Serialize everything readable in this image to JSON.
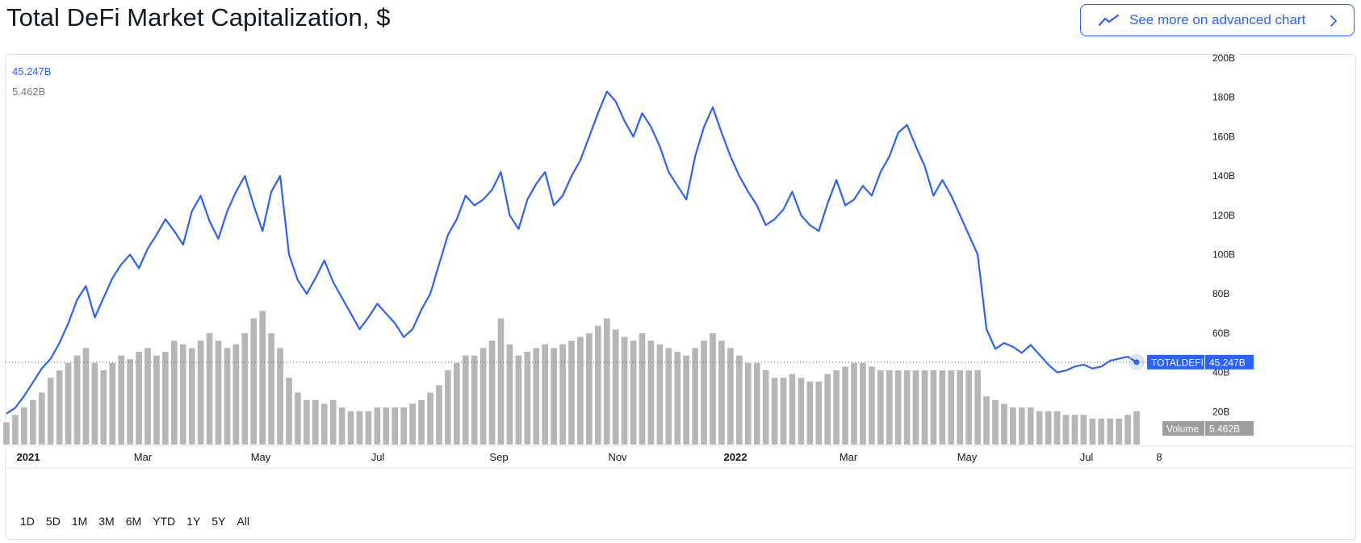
{
  "header": {
    "title": "Total DeFi Market Capitalization, $",
    "advanced_button_label": "See more on advanced chart"
  },
  "legend": {
    "last_value": "45.247B",
    "volume_value": "5.462B"
  },
  "price_badge": {
    "symbol": "TOTALDEFI",
    "value": "45.247B"
  },
  "volume_badge": {
    "label": "Volume",
    "value": "5.462B"
  },
  "range_buttons": [
    "1D",
    "5D",
    "1M",
    "3M",
    "6M",
    "YTD",
    "1Y",
    "5Y",
    "All"
  ],
  "colors": {
    "line": "#2962ff",
    "volume": "#9e9e9e",
    "accent": "#2962ff"
  },
  "chart_data": {
    "type": "line",
    "x_axis_labels": [
      "2021",
      "Mar",
      "May",
      "Jul",
      "Sep",
      "Nov",
      "2022",
      "Mar",
      "May",
      "Jul",
      "8"
    ],
    "x_axis_bold": [
      "2021",
      "2022"
    ],
    "y_axis_labels": [
      "200B",
      "180B",
      "160B",
      "140B",
      "120B",
      "100B",
      "80B",
      "60B",
      "40B",
      "20B"
    ],
    "ylim": [
      0,
      200
    ],
    "grid": false,
    "series": [
      {
        "values": [
          19,
          22,
          28,
          35,
          42,
          47,
          55,
          65,
          77,
          84,
          68,
          78,
          88,
          95,
          100,
          93,
          103,
          110,
          118,
          112,
          105,
          122,
          130,
          117,
          108,
          122,
          132,
          140,
          125,
          112,
          132,
          140,
          100,
          87,
          80,
          88,
          97,
          86,
          78,
          70,
          62,
          68,
          75,
          70,
          65,
          58,
          62,
          72,
          80,
          95,
          110,
          118,
          130,
          125,
          128,
          133,
          142,
          120,
          113,
          128,
          136,
          142,
          125,
          130,
          140,
          148,
          160,
          172,
          183,
          178,
          168,
          160,
          172,
          165,
          155,
          142,
          135,
          128,
          150,
          165,
          175,
          162,
          150,
          140,
          132,
          125,
          115,
          118,
          123,
          132,
          120,
          115,
          112,
          126,
          138,
          125,
          128,
          135,
          130,
          142,
          150,
          162,
          166,
          155,
          145,
          130,
          138,
          130,
          120,
          110,
          100,
          62,
          52,
          55,
          53,
          50,
          54,
          49,
          44,
          40,
          41,
          43,
          44,
          42,
          43,
          46,
          47,
          48,
          45.2
        ]
      }
    ],
    "volume_series": {
      "values": [
        6,
        8,
        10,
        12,
        14,
        18,
        20,
        22,
        24,
        26,
        22,
        20,
        22,
        24,
        23,
        25,
        26,
        24,
        25,
        28,
        27,
        26,
        28,
        30,
        28,
        26,
        27,
        30,
        34,
        36,
        30,
        26,
        18,
        14,
        12,
        12,
        11,
        12,
        10,
        9,
        9,
        9,
        10,
        10,
        10,
        10,
        11,
        12,
        14,
        16,
        20,
        22,
        24,
        24,
        26,
        28,
        34,
        27,
        24,
        25,
        26,
        27,
        26,
        27,
        28,
        29,
        30,
        32,
        34,
        31,
        29,
        28,
        30,
        28,
        27,
        26,
        25,
        24,
        26,
        28,
        30,
        28,
        26,
        24,
        22,
        22,
        20,
        18,
        18,
        19,
        18,
        17,
        17,
        19,
        20,
        21,
        22,
        22,
        21,
        20,
        20,
        20,
        20,
        20,
        20,
        20,
        20,
        20,
        20,
        20,
        20,
        13,
        12,
        11,
        10,
        10,
        10,
        9,
        9,
        9,
        8,
        8,
        8,
        7,
        7,
        7,
        7,
        8,
        9
      ]
    },
    "last_value_marker": 45.247
  }
}
